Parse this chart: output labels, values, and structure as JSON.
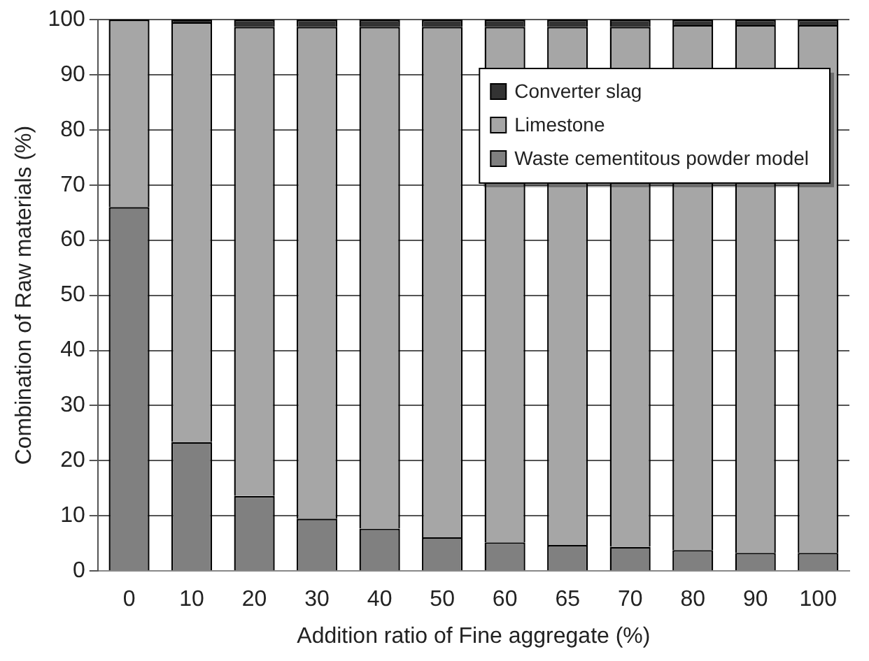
{
  "chart_data": {
    "type": "bar",
    "stacked": true,
    "xlabel": "Addition ratio of Fine aggregate (%)",
    "ylabel": "Combination of Raw materials (%)",
    "categories": [
      "0",
      "10",
      "20",
      "30",
      "40",
      "50",
      "60",
      "65",
      "70",
      "80",
      "90",
      "100"
    ],
    "series": [
      {
        "name": "Waste cementitous powder model",
        "color": "#808080",
        "values": [
          66,
          23.4,
          13.6,
          9.5,
          7.7,
          6.1,
          5.2,
          4.7,
          4.4,
          3.8,
          3.3,
          3.3
        ]
      },
      {
        "name": "Limestone",
        "color": "#a6a6a6",
        "values": [
          34,
          76.1,
          85.1,
          89.2,
          91,
          92.6,
          93.5,
          94,
          94.3,
          95.2,
          95.7,
          95.7
        ]
      },
      {
        "name": "Converter slag",
        "color": "#333333",
        "values": [
          0,
          0.5,
          1.3,
          1.3,
          1.3,
          1.3,
          1.3,
          1.3,
          1.3,
          1,
          1,
          1
        ]
      }
    ],
    "ylim": [
      0,
      100
    ],
    "yticks": [
      0,
      10,
      20,
      30,
      40,
      50,
      60,
      70,
      80,
      90,
      100
    ],
    "grid": "y",
    "legend": "top right"
  }
}
